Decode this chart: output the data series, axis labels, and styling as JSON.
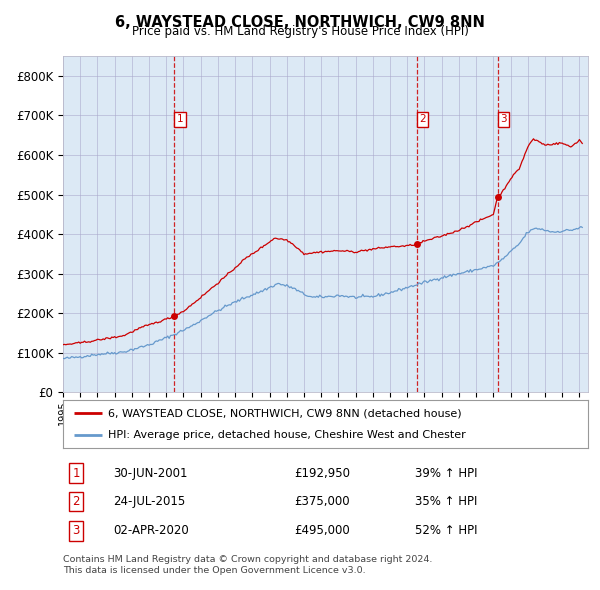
{
  "title1": "6, WAYSTEAD CLOSE, NORTHWICH, CW9 8NN",
  "title2": "Price paid vs. HM Land Registry's House Price Index (HPI)",
  "legend_line1": "6, WAYSTEAD CLOSE, NORTHWICH, CW9 8NN (detached house)",
  "legend_line2": "HPI: Average price, detached house, Cheshire West and Chester",
  "transactions": [
    {
      "num": 1,
      "date": "30-JUN-2001",
      "price": "192,950",
      "price_display": "£192,950",
      "pct": "39%",
      "dir": "↑"
    },
    {
      "num": 2,
      "date": "24-JUL-2015",
      "price": "375,000",
      "price_display": "£375,000",
      "pct": "35%",
      "dir": "↑"
    },
    {
      "num": 3,
      "date": "02-APR-2020",
      "price": "495,000",
      "price_display": "£495,000",
      "pct": "52%",
      "dir": "↑"
    }
  ],
  "footer1": "Contains HM Land Registry data © Crown copyright and database right 2024.",
  "footer2": "This data is licensed under the Open Government Licence v3.0.",
  "red_color": "#cc0000",
  "blue_color": "#6699cc",
  "dashed_color": "#cc0000",
  "bg_color": "#dce9f5",
  "grid_color": "#aaaacc",
  "ylim_max": 850000,
  "ylim_min": 0,
  "start_year": 1995.0,
  "end_year": 2025.5,
  "trans_decimal_dates": [
    2001.458,
    2015.542,
    2020.25
  ],
  "trans_prices": [
    192950,
    375000,
    495000
  ]
}
